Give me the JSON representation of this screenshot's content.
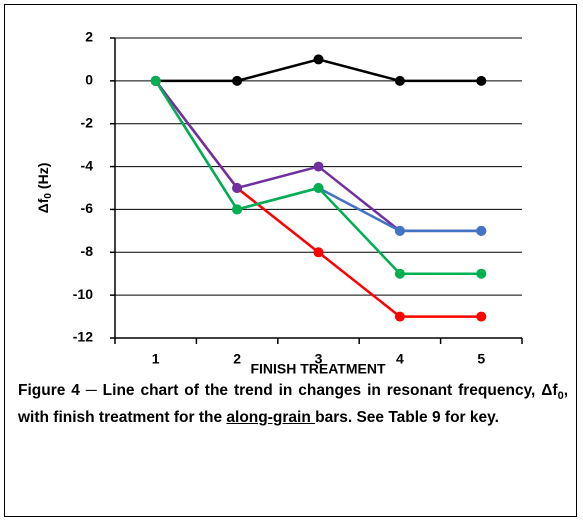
{
  "chart_data": {
    "type": "line",
    "xlabel": "FINISH TREATMENT",
    "ylabel": {
      "main": "Δf",
      "sub": "0",
      "unit": "(Hz)"
    },
    "categories": [
      "1",
      "2",
      "3",
      "4",
      "5"
    ],
    "series": [
      {
        "color": "#000000",
        "values": [
          0,
          0,
          1,
          0,
          0
        ]
      },
      {
        "color": "#ff0000",
        "values": [
          0,
          -5,
          -8,
          -11,
          -11
        ]
      },
      {
        "color": "#7030a0",
        "values": [
          0,
          -5,
          -4,
          -7,
          -7
        ]
      },
      {
        "color": "#4472c4",
        "values": [
          0,
          -6,
          -5,
          -7,
          -7
        ]
      },
      {
        "color": "#00b050",
        "values": [
          0,
          -6,
          -5,
          -9,
          -9
        ]
      }
    ],
    "ylim": [
      -12,
      2
    ],
    "yticks": [
      -12,
      -10,
      -8,
      -6,
      -4,
      -2,
      0,
      2
    ],
    "grid": true
  },
  "caption": [
    "Figure 4 ─ Line chart of the trend in changes in resonant frequency, Δf",
    "0",
    ", with finish treatment for the ",
    "along-grain ",
    "bars.  See Table 9 for key."
  ]
}
